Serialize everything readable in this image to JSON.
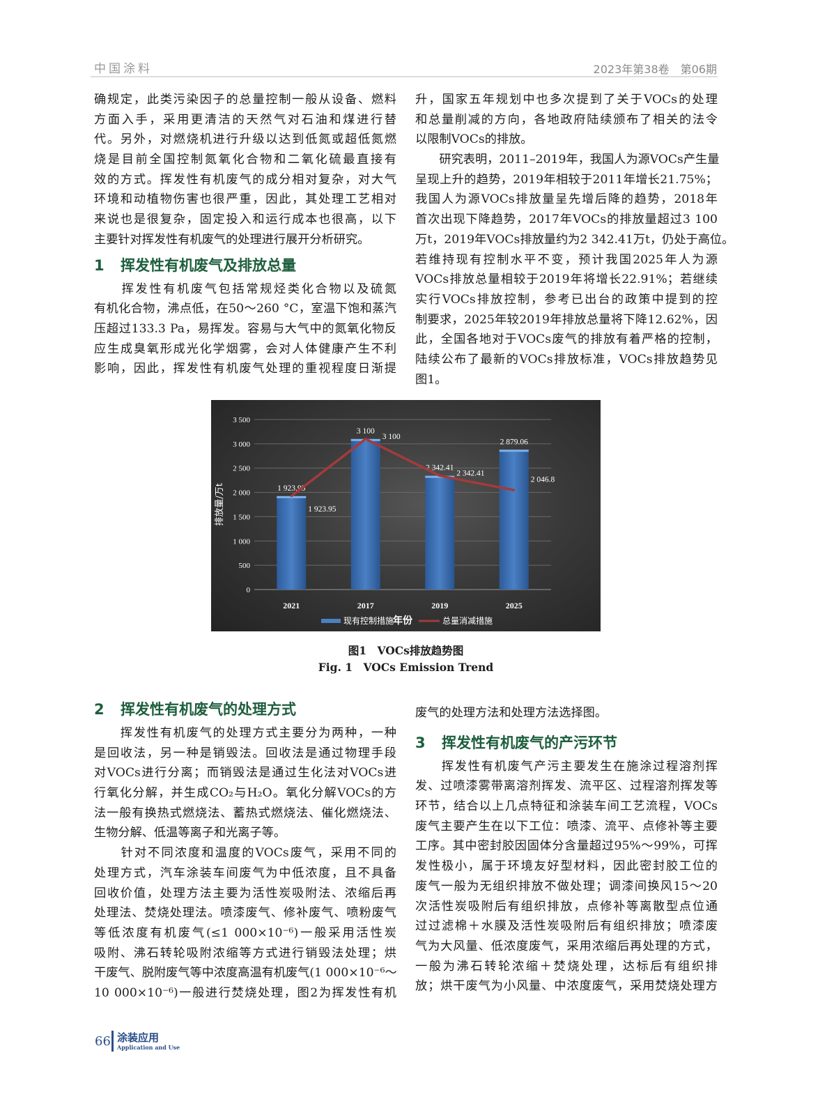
{
  "header": {
    "journal": "中国涂料",
    "issue": "2023年第38卷　第06期"
  },
  "left_top": {
    "para1": [
      "确规定，此类污染因子的总量控制一般从设备、燃料",
      "方面入手，采用更清洁的天然气对石油和煤进行替",
      "代。另外，对燃烧机进行升级以达到低氮或超低氮燃",
      "烧是目前全国控制氮氧化合物和二氧化硫最直接有",
      "效的方式。挥发性有机废气的成分相对复杂，对大气",
      "环境和动植物伤害也很严重，因此，其处理工艺相对",
      "来说也是很复杂，固定投入和运行成本也很高，以下",
      "主要针对挥发性有机废气的处理进行展开分析研究。"
    ],
    "heading1_num": "1",
    "heading1": "挥发性有机废气及排放总量",
    "para2": [
      "　　挥发性有机废气包括常规烃类化合物以及硫氮",
      "有机化合物，沸点低，在50～260 °C，室温下饱和蒸汽",
      "压超过133.3 Pa，易挥发。容易与大气中的氮氧化物反",
      "应生成臭氧形成光化学烟雾，会对人体健康产生不利",
      "影响，因此，挥发性有机废气处理的重视程度日渐提"
    ]
  },
  "right_top": {
    "para1": [
      "升，国家五年规划中也多次提到了关于VOCs的处理",
      "和总量削减的方向，各地政府陆续颁布了相关的法令",
      "以限制VOCs的排放。"
    ],
    "para2": [
      "　　研究表明，2011–2019年，我国人为源VOCs产生量",
      "呈现上升的趋势，2019年相较于2011年增长21.75%；",
      "我国人为源VOCs排放量呈先增后降的趋势，2018年",
      "首次出现下降趋势，2017年VOCs的排放量超过3 100",
      "万t，2019年VOCs排放量约为2 342.41万t，仍处于高位。",
      "若维持现有控制水平不变，预计我国2025年人为源",
      "VOCs排放总量相较于2019年将增长22.91%；若继续",
      "实行VOCs排放控制，参考已出台的政策中提到的控",
      "制要求，2025年较2019年排放总量将下降12.62%，因",
      "此，全国各地对于VOCs废气的排放有着严格的控制，",
      "陆续公布了最新的VOCs排放标准，VOCs排放趋势见",
      "图1。"
    ]
  },
  "figure": {
    "caption_cn": "图1　VOCs排放趋势图",
    "caption_en": "Fig. 1　VOCs Emission Trend"
  },
  "chart_data": {
    "type": "bar+line",
    "categories": [
      "2021",
      "2017",
      "2019",
      "2025"
    ],
    "xlabel": "年份",
    "ylabel": "排放量/万t",
    "ylim": [
      0,
      3500
    ],
    "yticks": [
      0,
      500,
      1000,
      1500,
      2000,
      2500,
      3000,
      3500
    ],
    "ytick_labels": [
      "0",
      "500",
      "1 000",
      "1 500",
      "2 000",
      "2 500",
      "3 000",
      "3 500"
    ],
    "grid": true,
    "legend": "bottom",
    "series": [
      {
        "name": "现有控制措施",
        "type": "bar",
        "color": "#3d6fb0",
        "values": [
          1923.95,
          3100,
          2342.41,
          2879.06
        ],
        "labels": [
          "1 923.95",
          "3 100",
          "2 342.41",
          "2 879.06"
        ]
      },
      {
        "name": "总量消减措施",
        "type": "line",
        "color": "#a33b3b",
        "values": [
          1923.95,
          3100,
          2342.41,
          2046.8
        ],
        "labels": [
          "1 923.95",
          "3 100",
          "2 342.41",
          "2 046.8"
        ]
      }
    ]
  },
  "left_bottom": {
    "heading2_num": "2",
    "heading2": "挥发性有机废气的处理方式",
    "para1": [
      "　　挥发性有机废气的处理方式主要分为两种，一种",
      "是回收法，另一种是销毁法。回收法是通过物理手段",
      "对VOCs进行分离；而销毁法是通过生化法对VOCs进",
      "行氧化分解，并生成CO₂与H₂O。氧化分解VOCs的方",
      "法一般有换热式燃烧法、蓄热式燃烧法、催化燃烧法、",
      "生物分解、低温等离子和光离子等。"
    ],
    "para2": [
      "　　针对不同浓度和温度的VOCs废气，采用不同的",
      "处理方式，汽车涂装车间废气为中低浓度，且不具备",
      "回收价值，处理方法主要为活性炭吸附法、浓缩后再",
      "处理法、焚烧处理法。喷漆废气、修补废气、喷粉废气",
      "等低浓度有机废气(≤1 000×10⁻⁶)一般采用活性炭",
      "吸附、沸石转轮吸附浓缩等方式进行销毁法处理；烘",
      "干废气、脱附废气等中浓度高温有机废气(1 000×10⁻⁶～",
      "10 000×10⁻⁶)一般进行焚烧处理，图2为挥发性有机"
    ]
  },
  "right_bottom": {
    "para0": [
      "废气的处理方法和处理方法选择图。"
    ],
    "heading3_num": "3",
    "heading3": "挥发性有机废气的产污环节",
    "para1": [
      "　　挥发性有机废气产污主要发生在施涂过程溶剂挥",
      "发、过喷漆雾带离溶剂挥发、流平区、过程溶剂挥发等",
      "环节，结合以上几点特征和涂装车间工艺流程，VOCs",
      "废气主要产生在以下工位：喷漆、流平、点修补等主要",
      "工序。其中密封胶因固体分含量超过95%～99%，可挥",
      "发性极小，属于环境友好型材料，因此密封胶工位的",
      "废气一般为无组织排放不做处理；调漆间换风15～20",
      "次活性炭吸附后有组织排放，点修补等离散型点位通",
      "过过滤棉＋水膜及活性炭吸附后有组织排放；喷漆废",
      "气为大风量、低浓度废气，采用浓缩后再处理的方式，",
      "一般为沸石转轮浓缩＋焚烧处理，达标后有组织排",
      "放；烘干废气为小风量、中浓度废气，采用焚烧处理方"
    ]
  },
  "footer": {
    "page": "66",
    "section": "涂装应用",
    "section_en": "Application and Use"
  }
}
